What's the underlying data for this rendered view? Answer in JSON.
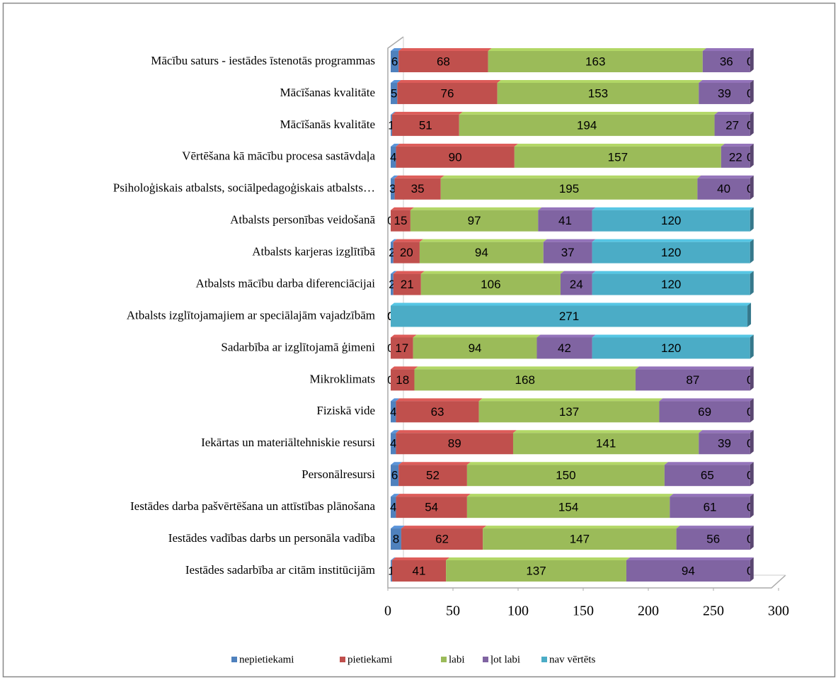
{
  "chart_data": {
    "type": "stacked-bar-horizontal",
    "categories": [
      "Mācību saturs - iestādes īstenotās programmas",
      "Mācīšanas kvalitāte",
      "Mācīšanās kvalitāte",
      "Vērtēšana kā mācību procesa sastāvdaļa",
      "Psiholoģiskais atbalsts, sociālpedagoģiskais atbalsts…",
      "Atbalsts personības veidošanā",
      "Atbalsts karjeras izglītībā",
      "Atbalsts mācību darba diferenciācijai",
      "Atbalsts izglītojamajiem ar speciālajām vajadzībām",
      "Sadarbība ar izglītojamā ģimeni",
      "Mikroklimats",
      "Fiziskā vide",
      "Iekārtas un materiāltehniskie resursi",
      "Personālresursi",
      "Iestādes darba pašvērtēšana un attīstības plānošana",
      "Iestādes vadības darbs un personāla vadība",
      "Iestādes sadarbība ar citām institūcijām"
    ],
    "series": [
      {
        "name": "nepietiekami",
        "color": "#4f81bd",
        "values": [
          6,
          5,
          1,
          4,
          3,
          0,
          2,
          2,
          0,
          0,
          0,
          4,
          4,
          6,
          4,
          8,
          1
        ]
      },
      {
        "name": "pietiekami",
        "color": "#c0504d",
        "values": [
          68,
          76,
          51,
          90,
          35,
          15,
          20,
          21,
          0,
          17,
          18,
          63,
          89,
          52,
          54,
          62,
          41
        ]
      },
      {
        "name": "labi",
        "color": "#9bbb59",
        "values": [
          163,
          153,
          194,
          157,
          195,
          97,
          94,
          106,
          0,
          94,
          168,
          137,
          141,
          150,
          154,
          147,
          137
        ]
      },
      {
        "name": "ļot labi",
        "color": "#8064a2",
        "values": [
          36,
          39,
          27,
          22,
          40,
          41,
          37,
          24,
          0,
          42,
          87,
          69,
          39,
          65,
          61,
          56,
          94
        ]
      },
      {
        "name": "nav vērtēts",
        "color": "#4bacc6",
        "values": [
          0,
          0,
          0,
          0,
          0,
          120,
          120,
          120,
          271,
          120,
          0,
          0,
          0,
          0,
          0,
          0,
          0
        ]
      }
    ],
    "xlim": [
      0,
      300
    ],
    "xticks": [
      0,
      50,
      100,
      150,
      200,
      250,
      300
    ],
    "legend": "bottom"
  }
}
